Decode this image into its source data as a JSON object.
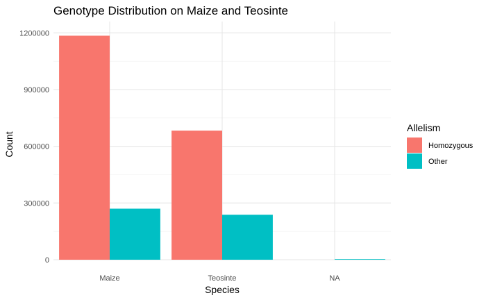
{
  "chart_data": {
    "type": "bar",
    "title": "Genotype Distribution on Maize and Teosinte",
    "xlabel": "Species",
    "ylabel": "Count",
    "categories": [
      "Maize",
      "Teosinte",
      "NA"
    ],
    "yticks": [
      "0",
      "300000",
      "600000",
      "900000",
      "1200000"
    ],
    "ylim": [
      0,
      1260000
    ],
    "legend": {
      "title": "Allelism",
      "position": "right"
    },
    "series": [
      {
        "name": "Homozygous",
        "color": "#F8766D",
        "values": [
          1185000,
          683000,
          0
        ]
      },
      {
        "name": "Other",
        "color": "#00BFC4",
        "values": [
          270000,
          238000,
          3000
        ]
      }
    ],
    "grid": true
  }
}
